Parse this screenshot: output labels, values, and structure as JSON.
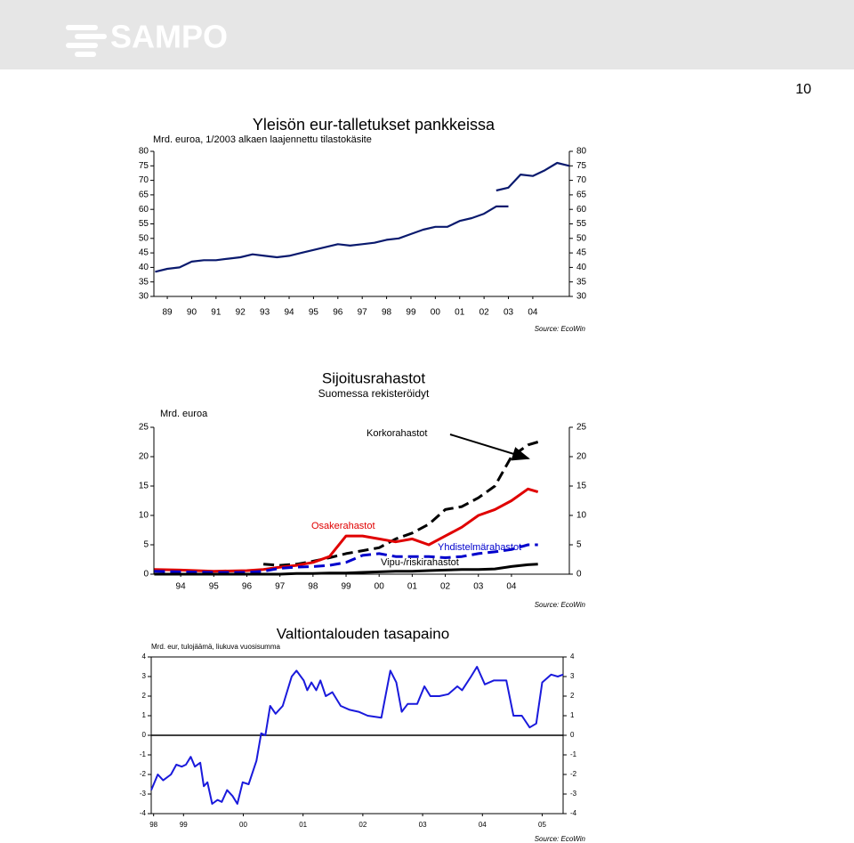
{
  "header": {
    "logo": "SAMPO",
    "page_number": "10"
  },
  "chart_data": [
    {
      "type": "line",
      "title": "Yleisön eur-talletukset pankkeissa",
      "unit": "Mrd. euroa, 1/2003 alkaen laajennettu tilastokäsite",
      "source": "Source: EcoWin",
      "x": [
        1989,
        1989.5,
        1990,
        1990.5,
        1991,
        1991.5,
        1992,
        1992.5,
        1993,
        1993.5,
        1994,
        1994.5,
        1995,
        1995.5,
        1996,
        1996.5,
        1997,
        1997.5,
        1998,
        1998.5,
        1999,
        1999.5,
        2000,
        2000.5,
        2001,
        2001.5,
        2002,
        2002.5,
        2003,
        2003.5,
        2004,
        2004.5,
        2005,
        2005.5,
        2006
      ],
      "xlim": [
        1988.95,
        2006.0
      ],
      "xticks": [
        {
          "value": 1989.5,
          "label": "89"
        },
        {
          "value": 1990.5,
          "label": "90"
        },
        {
          "value": 1991.5,
          "label": "91"
        },
        {
          "value": 1992.5,
          "label": "92"
        },
        {
          "value": 1993.5,
          "label": "93"
        },
        {
          "value": 1994.5,
          "label": "94"
        },
        {
          "value": 1995.5,
          "label": "95"
        },
        {
          "value": 1996.5,
          "label": "96"
        },
        {
          "value": 1997.5,
          "label": "97"
        },
        {
          "value": 1998.5,
          "label": "98"
        },
        {
          "value": 1999.5,
          "label": "99"
        },
        {
          "value": 2000.5,
          "label": "00"
        },
        {
          "value": 2001.5,
          "label": "01"
        },
        {
          "value": 2002.5,
          "label": "02"
        },
        {
          "value": 2003.5,
          "label": "03"
        },
        {
          "value": 2004.5,
          "label": "04"
        }
      ],
      "ylim": [
        30,
        80
      ],
      "yticks": [
        30,
        35,
        40,
        45,
        50,
        55,
        60,
        65,
        70,
        75,
        80
      ],
      "series": [
        {
          "color": "#0a1a6e",
          "values": [
            38.5,
            39.5,
            40,
            42,
            42.5,
            42.5,
            43,
            43.5,
            44.5,
            44,
            43.5,
            44,
            45,
            46,
            47,
            48,
            47.5,
            48,
            48.5,
            49.5,
            50,
            51.5,
            53,
            54,
            54,
            56,
            57,
            58.5,
            61,
            61,
            null,
            null,
            null,
            null,
            null
          ]
        },
        {
          "color": "#0a1a6e",
          "values": [
            null,
            null,
            null,
            null,
            null,
            null,
            null,
            null,
            null,
            null,
            null,
            null,
            null,
            null,
            null,
            null,
            null,
            null,
            null,
            null,
            null,
            null,
            null,
            null,
            null,
            null,
            null,
            null,
            66.5,
            67.5,
            72,
            71.5,
            73.5,
            76,
            75
          ]
        }
      ]
    },
    {
      "type": "line",
      "title": "Sijoitusrahastot",
      "subtitle": "Suomessa rekisteröidyt",
      "unit": "Mrd. euroa",
      "source": "Source: EcoWin",
      "x": [
        1993.7,
        1994.5,
        1995.5,
        1996.5,
        1997,
        1997.5,
        1998,
        1998.5,
        1999,
        1999.5,
        2000,
        2000.5,
        2001,
        2001.5,
        2002,
        2002.5,
        2003,
        2003.5,
        2004,
        2004.5,
        2005,
        2005.3
      ],
      "xlim": [
        1993.69,
        2006.25
      ],
      "xticks": [
        {
          "value": 1994.5,
          "label": "94"
        },
        {
          "value": 1995.5,
          "label": "95"
        },
        {
          "value": 1996.5,
          "label": "96"
        },
        {
          "value": 1997.5,
          "label": "97"
        },
        {
          "value": 1998.5,
          "label": "98"
        },
        {
          "value": 1999.5,
          "label": "99"
        },
        {
          "value": 2000.5,
          "label": "00"
        },
        {
          "value": 2001.5,
          "label": "01"
        },
        {
          "value": 2002.5,
          "label": "02"
        },
        {
          "value": 2003.5,
          "label": "03"
        },
        {
          "value": 2004.5,
          "label": "04"
        }
      ],
      "ylim": [
        0,
        25
      ],
      "yticks": [
        0,
        5,
        10,
        15,
        20,
        25
      ],
      "series": [
        {
          "name": "Korkorahastot",
          "color": "#000000",
          "dashed": true,
          "values": [
            null,
            null,
            null,
            null,
            1.7,
            1.5,
            1.7,
            2.2,
            2.8,
            3.5,
            4,
            4.5,
            6,
            7,
            8.5,
            11,
            11.5,
            13,
            15,
            20,
            22,
            22.5
          ]
        },
        {
          "name": "Osakerahastot",
          "color": "#e00000",
          "dashed": false,
          "values": [
            0.8,
            0.7,
            0.5,
            0.6,
            0.8,
            1.2,
            1.5,
            2,
            3,
            6.5,
            6.5,
            6,
            5.5,
            6,
            5,
            6.5,
            8,
            10,
            11,
            12.5,
            14.5,
            14
          ]
        },
        {
          "name": "Yhdistelmärahastot",
          "color": "#0000cc",
          "dashed": true,
          "values": [
            0.5,
            0.4,
            0.3,
            0.3,
            0.5,
            1,
            1.2,
            1.3,
            1.5,
            2,
            3.2,
            3.5,
            3,
            3,
            3,
            2.8,
            3,
            3.5,
            3.8,
            4.2,
            5,
            5
          ]
        },
        {
          "name": "Vipu-/riskirahastot",
          "color": "#000000",
          "dashed": false,
          "values": [
            0,
            0,
            0,
            0,
            0,
            0,
            0.1,
            0.1,
            0.2,
            0.2,
            0.3,
            0.4,
            0.5,
            0.5,
            0.6,
            0.7,
            0.8,
            0.8,
            0.9,
            1.3,
            1.6,
            1.7
          ]
        }
      ]
    },
    {
      "type": "line",
      "title": "Valtiontalouden tasapaino",
      "unit": "Mrd. eur, tulojäämä, liukuva vuosisumma",
      "source": "Source: EcoWin",
      "x": [
        1998.46,
        1998.57,
        1998.66,
        1998.79,
        1998.88,
        1998.97,
        1999.04,
        1999.12,
        1999.19,
        1999.28,
        1999.34,
        1999.4,
        1999.48,
        1999.57,
        1999.64,
        1999.73,
        1999.82,
        1999.9,
        1999.99,
        2000.09,
        2000.22,
        2000.3,
        2000.37,
        2000.45,
        2000.54,
        2000.66,
        2000.81,
        2000.89,
        2001.01,
        2001.07,
        2001.14,
        2001.22,
        2001.29,
        2001.38,
        2001.49,
        2001.63,
        2001.78,
        2001.93,
        2002.08,
        2002.31,
        2002.46,
        2002.56,
        2002.65,
        2002.75,
        2002.91,
        2003.03,
        2003.13,
        2003.28,
        2003.43,
        2003.58,
        2003.66,
        2003.81,
        2003.91,
        2004.04,
        2004.19,
        2004.4,
        2004.52,
        2004.66,
        2004.79,
        2004.9,
        2005.0,
        2005.15,
        2005.26,
        2005.35
      ],
      "xlim": [
        1998.46,
        2005.35
      ],
      "xticks": [
        {
          "value": 1998.5,
          "label": "98"
        },
        {
          "value": 1999,
          "label": "99"
        },
        {
          "value": 2000,
          "label": "00"
        },
        {
          "value": 2001,
          "label": "01"
        },
        {
          "value": 2002,
          "label": "02"
        },
        {
          "value": 2003,
          "label": "03"
        },
        {
          "value": 2004,
          "label": "04"
        },
        {
          "value": 2005,
          "label": "05"
        }
      ],
      "ylim": [
        -4,
        4
      ],
      "yticks": [
        -4,
        -3,
        -2,
        -1,
        0,
        1,
        2,
        3,
        4
      ],
      "series": [
        {
          "color": "#1a1adc",
          "values": [
            -2.8,
            -2.0,
            -2.3,
            -2.0,
            -1.5,
            -1.6,
            -1.5,
            -1.1,
            -1.6,
            -1.4,
            -2.6,
            -2.4,
            -3.5,
            -3.3,
            -3.4,
            -2.8,
            -3.1,
            -3.5,
            -2.4,
            -2.5,
            -1.3,
            0.1,
            0.0,
            1.5,
            1.1,
            1.5,
            3.0,
            3.3,
            2.8,
            2.3,
            2.7,
            2.3,
            2.8,
            2.0,
            2.2,
            1.5,
            1.3,
            1.2,
            1.0,
            0.9,
            3.3,
            2.7,
            1.2,
            1.6,
            1.6,
            2.5,
            2.0,
            2.0,
            2.1,
            2.5,
            2.3,
            3.0,
            3.5,
            2.6,
            2.8,
            2.8,
            1.0,
            1.0,
            0.4,
            0.6,
            2.7,
            3.1,
            3.0,
            3.1
          ]
        }
      ]
    }
  ]
}
